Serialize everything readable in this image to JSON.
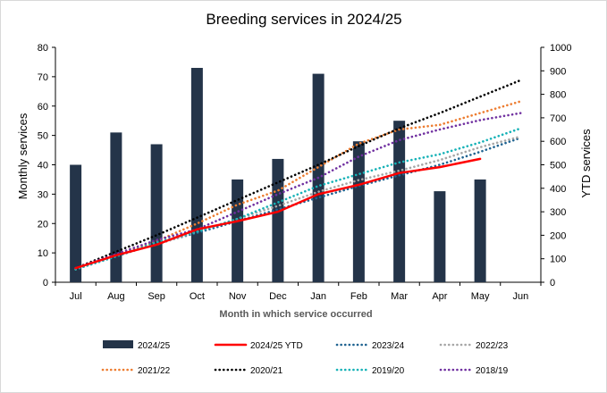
{
  "chart_data": {
    "type": "bar",
    "title": "Breeding services in 2024/25",
    "xlabel": "Month in which service occurred",
    "ylabel": "Monthly services",
    "y2label": "YTD services",
    "ylim": [
      0,
      80
    ],
    "y2lim": [
      0,
      1000
    ],
    "yticks": [
      "0",
      "10",
      "20",
      "30",
      "40",
      "50",
      "60",
      "70",
      "80"
    ],
    "y2ticks": [
      "0",
      "100",
      "200",
      "300",
      "400",
      "500",
      "600",
      "700",
      "800",
      "900",
      "1000"
    ],
    "categories": [
      "Jul",
      "Aug",
      "Sep",
      "Oct",
      "Nov",
      "Dec",
      "Jan",
      "Feb",
      "Mar",
      "Apr",
      "May",
      "Jun"
    ],
    "bars": {
      "name": "2024/25",
      "color": "#243449",
      "values": [
        40,
        51,
        47,
        73,
        35,
        42,
        71,
        48,
        55,
        31,
        35,
        null
      ]
    },
    "series": [
      {
        "name": "2024/25 YTD",
        "axis": "secondary",
        "style": "solid",
        "color": "#ff0000",
        "values": [
          60,
          115,
          160,
          225,
          260,
          300,
          375,
          415,
          465,
          490,
          525,
          null
        ]
      },
      {
        "name": "2023/24",
        "axis": "secondary",
        "style": "dotted",
        "color": "#1f6391",
        "values": [
          55,
          110,
          165,
          210,
          260,
          310,
          360,
          410,
          455,
          500,
          555,
          615
        ]
      },
      {
        "name": "2022/23",
        "axis": "secondary",
        "style": "dotted",
        "color": "#a6a6a6",
        "values": [
          60,
          115,
          160,
          215,
          270,
          325,
          385,
          435,
          475,
          520,
          575,
          620
        ]
      },
      {
        "name": "2021/22",
        "axis": "secondary",
        "style": "dotted",
        "color": "#ed7d31",
        "values": [
          55,
          115,
          175,
          250,
          330,
          390,
          490,
          590,
          650,
          670,
          720,
          770
        ]
      },
      {
        "name": "2020/21",
        "axis": "secondary",
        "style": "dotted",
        "color": "#000000",
        "values": [
          60,
          130,
          200,
          275,
          350,
          425,
          500,
          580,
          655,
          720,
          790,
          860
        ]
      },
      {
        "name": "2019/20",
        "axis": "secondary",
        "style": "dotted",
        "color": "#17b2b7",
        "values": [
          55,
          110,
          170,
          215,
          270,
          340,
          410,
          460,
          510,
          545,
          595,
          655
        ]
      },
      {
        "name": "2018/19",
        "axis": "secondary",
        "style": "dotted",
        "color": "#7030a0",
        "values": [
          60,
          120,
          180,
          225,
          300,
          375,
          445,
          535,
          605,
          650,
          690,
          720
        ]
      }
    ],
    "legend": [
      "2024/25",
      "2024/25 YTD",
      "2023/24",
      "2022/23",
      "2021/22",
      "2020/21",
      "2019/20",
      "2018/19"
    ],
    "legend_position": "bottom"
  }
}
